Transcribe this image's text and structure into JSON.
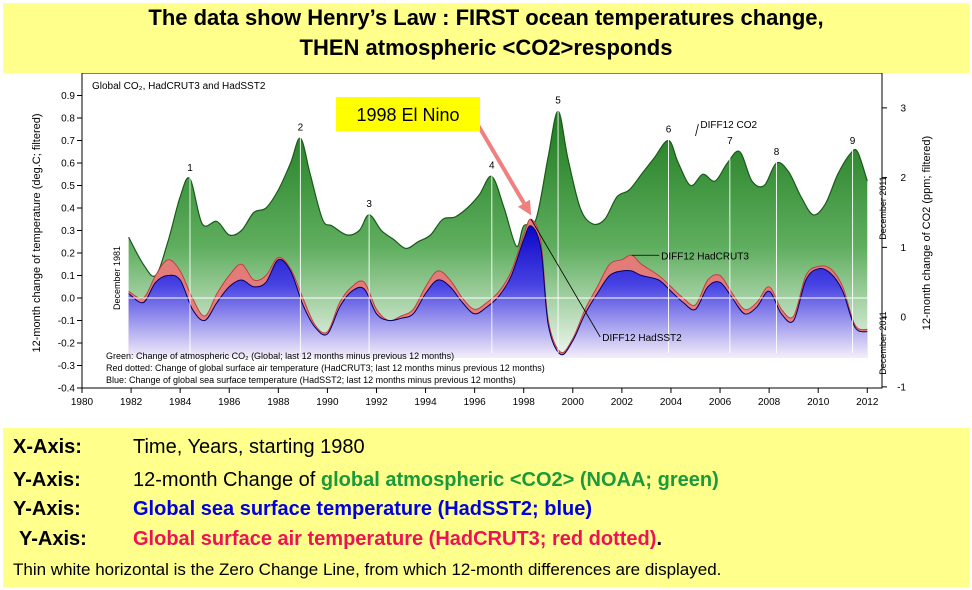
{
  "title": {
    "line1": "The data show Henry’s Law : FIRST ocean temperatures change,",
    "line2": "THEN atmospheric <CO2>responds"
  },
  "chart_data": {
    "type": "area",
    "inner_title": "Global CO₂, HadCRUT3 and HadSST2",
    "x_ticks": [
      1980,
      1982,
      1984,
      1986,
      1988,
      1990,
      1992,
      1994,
      1996,
      1998,
      2000,
      2002,
      2004,
      2006,
      2008,
      2010,
      2012
    ],
    "xlim": [
      1980,
      2012.6
    ],
    "ylim_left": [
      -0.4,
      1.0
    ],
    "left_ticks": [
      "-0.4",
      "-0.3",
      "-0.2",
      "-0.1",
      "0.0",
      "0.1",
      "0.2",
      "0.3",
      "0.4",
      "0.5",
      "0.6",
      "0.7",
      "0.8",
      "0.9"
    ],
    "right_ticks": [
      "-1",
      "0",
      "1",
      "2",
      "3"
    ],
    "right_tick_values": [
      -1,
      0,
      1,
      2,
      3
    ],
    "ylabel_left": "12-month change of temperature (deg.C; filtered)",
    "ylabel_right": "12-month change of CO2 (ppm; filtered)",
    "vertical_note_left": "December 1981",
    "vertical_note_right_top": "December 2011",
    "vertical_note_right_bottom": "December 2011",
    "series": [
      {
        "name": "DIFF12 CO2",
        "color": "#2a8a2a",
        "x": [
          1981.9,
          1982.5,
          1983.0,
          1983.5,
          1984.0,
          1984.4,
          1984.9,
          1985.5,
          1986.0,
          1986.5,
          1987.0,
          1987.5,
          1988.0,
          1988.5,
          1988.9,
          1989.3,
          1989.8,
          1990.2,
          1990.8,
          1991.3,
          1991.7,
          1992.2,
          1992.7,
          1993.2,
          1993.7,
          1994.2,
          1994.7,
          1995.2,
          1995.7,
          1996.2,
          1996.7,
          1997.2,
          1997.7,
          1998.0,
          1998.5,
          1999.0,
          1999.4,
          1999.8,
          2000.3,
          2000.8,
          2001.3,
          2001.8,
          2002.3,
          2002.8,
          2003.3,
          2003.9,
          2004.3,
          2004.8,
          2005.3,
          2005.8,
          2006.3,
          2006.8,
          2007.3,
          2007.8,
          2008.3,
          2008.8,
          2009.3,
          2009.8,
          2010.3,
          2010.8,
          2011.3,
          2011.6,
          2012.0
        ],
        "y": [
          0.27,
          0.15,
          0.1,
          0.25,
          0.45,
          0.53,
          0.33,
          0.34,
          0.28,
          0.3,
          0.38,
          0.4,
          0.48,
          0.6,
          0.71,
          0.55,
          0.35,
          0.32,
          0.28,
          0.3,
          0.37,
          0.3,
          0.26,
          0.22,
          0.25,
          0.28,
          0.35,
          0.36,
          0.4,
          0.46,
          0.54,
          0.4,
          0.23,
          0.32,
          0.35,
          0.63,
          0.83,
          0.62,
          0.4,
          0.33,
          0.35,
          0.45,
          0.48,
          0.55,
          0.62,
          0.7,
          0.6,
          0.5,
          0.55,
          0.52,
          0.6,
          0.65,
          0.52,
          0.5,
          0.6,
          0.56,
          0.45,
          0.37,
          0.42,
          0.55,
          0.64,
          0.65,
          0.52
        ]
      },
      {
        "name": "DIFF12 HadCRUT3",
        "color": "#e87878",
        "x": [
          1981.9,
          1982.5,
          1983.0,
          1983.5,
          1984.0,
          1984.5,
          1985.0,
          1985.5,
          1986.0,
          1986.5,
          1987.0,
          1987.5,
          1988.0,
          1988.5,
          1989.0,
          1989.5,
          1990.0,
          1990.5,
          1991.0,
          1991.5,
          1992.0,
          1992.5,
          1993.0,
          1993.5,
          1994.0,
          1994.5,
          1995.0,
          1995.5,
          1996.0,
          1996.5,
          1997.0,
          1997.5,
          1998.0,
          1998.3,
          1998.7,
          1999.0,
          1999.5,
          2000.0,
          2000.5,
          2001.0,
          2001.5,
          2002.0,
          2002.4,
          2002.8,
          2003.5,
          2004.0,
          2004.5,
          2005.0,
          2005.5,
          2006.0,
          2006.5,
          2007.0,
          2007.5,
          2008.0,
          2008.5,
          2009.0,
          2009.5,
          2010.0,
          2010.5,
          2011.0,
          2011.5,
          2012.0
        ],
        "y": [
          0.03,
          0.0,
          0.1,
          0.17,
          0.12,
          0.0,
          -0.08,
          0.02,
          0.1,
          0.15,
          0.08,
          0.1,
          0.18,
          0.13,
          0.0,
          -0.12,
          -0.15,
          -0.02,
          0.05,
          0.07,
          -0.05,
          -0.1,
          -0.08,
          -0.05,
          0.05,
          0.12,
          0.08,
          0.0,
          -0.05,
          -0.02,
          0.03,
          0.12,
          0.28,
          0.35,
          0.25,
          -0.1,
          -0.24,
          -0.18,
          -0.05,
          0.05,
          0.15,
          0.17,
          0.19,
          0.15,
          0.1,
          0.05,
          0.0,
          -0.03,
          0.08,
          0.1,
          0.02,
          -0.05,
          -0.02,
          0.05,
          -0.05,
          -0.08,
          0.1,
          0.14,
          0.13,
          0.05,
          -0.12,
          -0.14
        ]
      },
      {
        "name": "DIFF12 HadSST2",
        "color": "#1a1ae6",
        "x": [
          1981.9,
          1982.5,
          1983.0,
          1983.5,
          1984.0,
          1984.5,
          1985.0,
          1985.5,
          1986.0,
          1986.5,
          1987.0,
          1987.5,
          1988.0,
          1988.5,
          1989.0,
          1989.5,
          1990.0,
          1990.5,
          1991.0,
          1991.5,
          1992.0,
          1992.5,
          1993.0,
          1993.5,
          1994.0,
          1994.5,
          1995.0,
          1995.5,
          1996.0,
          1996.5,
          1997.0,
          1997.5,
          1998.0,
          1998.3,
          1998.7,
          1999.0,
          1999.5,
          2000.0,
          2000.5,
          2001.0,
          2001.5,
          2002.0,
          2002.4,
          2002.8,
          2003.5,
          2004.0,
          2004.5,
          2005.0,
          2005.5,
          2006.0,
          2006.5,
          2007.0,
          2007.5,
          2008.0,
          2008.5,
          2009.0,
          2009.5,
          2010.0,
          2010.5,
          2011.0,
          2011.5,
          2012.0
        ],
        "y": [
          0.02,
          -0.02,
          0.07,
          0.1,
          0.08,
          -0.05,
          -0.1,
          -0.02,
          0.05,
          0.08,
          0.05,
          0.07,
          0.17,
          0.12,
          -0.03,
          -0.13,
          -0.16,
          -0.04,
          0.03,
          0.04,
          -0.07,
          -0.1,
          -0.09,
          -0.07,
          0.02,
          0.08,
          0.05,
          -0.02,
          -0.07,
          -0.04,
          0.01,
          0.1,
          0.26,
          0.32,
          0.22,
          -0.12,
          -0.25,
          -0.19,
          -0.07,
          0.02,
          0.1,
          0.12,
          0.12,
          0.1,
          0.08,
          0.03,
          -0.02,
          -0.05,
          0.05,
          0.07,
          0.0,
          -0.07,
          -0.04,
          0.03,
          -0.07,
          -0.1,
          0.08,
          0.13,
          0.11,
          0.03,
          -0.13,
          -0.15
        ]
      }
    ],
    "series_labels": [
      {
        "text": "DIFF12 CO2",
        "x": 2005.0,
        "y": 0.72
      },
      {
        "text": "DIFF12 HadCRUT3",
        "x": 2002.4,
        "y": 0.19
      },
      {
        "text": "DIFF12 HadSST2",
        "x": 1998.3,
        "y": 0.35
      }
    ],
    "peak_labels": [
      {
        "text": "1",
        "x": 1984.4,
        "y": 0.53
      },
      {
        "text": "2",
        "x": 1988.9,
        "y": 0.71
      },
      {
        "text": "3",
        "x": 1991.7,
        "y": 0.37
      },
      {
        "text": "4",
        "x": 1996.7,
        "y": 0.54
      },
      {
        "text": "5",
        "x": 1999.4,
        "y": 0.83
      },
      {
        "text": "6",
        "x": 2003.9,
        "y": 0.7
      },
      {
        "text": "7",
        "x": 2006.4,
        "y": 0.65
      },
      {
        "text": "8",
        "x": 2008.3,
        "y": 0.6
      },
      {
        "text": "9",
        "x": 2011.4,
        "y": 0.65
      }
    ],
    "notes": [
      "Green: Change of atmospheric CO₂ (Global; last 12 months minus previous 12 months)",
      "Red dotted: Change of global surface air temperature (HadCRUT3; last 12 months minus previous 12 months)",
      "Blue: Change of global sea surface temperature (HadSST2; last 12 months minus previous 12 months)"
    ],
    "annotation": {
      "text": "1998 El Nino",
      "x": 1998.3,
      "y": 0.35
    },
    "grid": false,
    "colors": {
      "plot_bg": "#ffffff",
      "co2": "#2a8a2a",
      "hadcrut3": "#e87878",
      "hadsst2": "#1a1ae6",
      "annotation_bg": "#ffff00",
      "arrow": "#f08080"
    }
  },
  "legend": {
    "x_axis_label": "X-Axis:",
    "x_axis_text": "Time, Years, starting 1980",
    "y1_label": "Y-Axis:",
    "y1_plain": "12-month Change of ",
    "y1_colored": "global atmospheric <CO2> (NOAA; green)",
    "y2_label": "Y-Axis:",
    "y2_colored": "Global sea surface temperature (HadSST2; blue)",
    "y3_label": "Y-Axis:",
    "y3_colored": "Global surface air temperature (HadCRUT3; red dotted)",
    "y3_tail": ".",
    "footnote": "Thin white horizontal is the Zero Change Line, from which 12-month differences are displayed."
  },
  "colors": {
    "banner": "#ffff8c",
    "green_text": "#1a9a3a",
    "blue_text": "#0000e0",
    "red_text": "#ee1155"
  }
}
